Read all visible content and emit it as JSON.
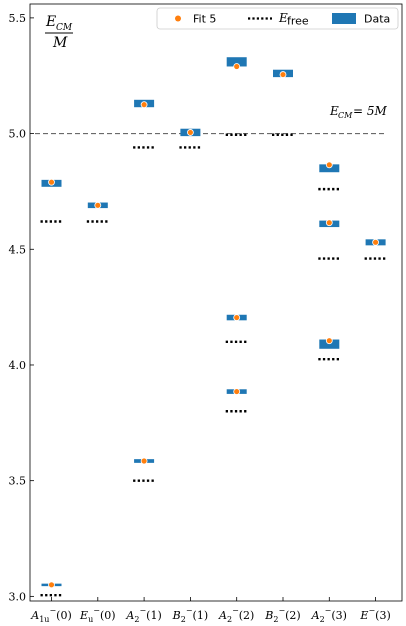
{
  "chart_data": {
    "type": "scatter",
    "title": "",
    "xlabel": "",
    "ylabel": "E_CM / M",
    "ylim": [
      2.98,
      5.56
    ],
    "yticks": [
      "3.0",
      "3.5",
      "4.0",
      "4.5",
      "5.0",
      "5.5"
    ],
    "ytick_values": [
      3.0,
      3.5,
      4.0,
      4.5,
      5.0,
      5.5
    ],
    "categories": [
      "A1u(0)",
      "Eu(0)",
      "A2(1)",
      "B2(1)",
      "A2(2)",
      "B2(2)",
      "A2(3)",
      "E(3)"
    ],
    "legend": {
      "placement": "top-right",
      "entries": [
        "Fit 5",
        "E_free",
        "Data"
      ]
    },
    "colors": {
      "data": "#1f77b4",
      "fit": "#ff7f0e",
      "free": "#000000",
      "threshold": "#555555"
    },
    "threshold": {
      "value": 5.0,
      "label": "E_CM = 5M"
    },
    "series": [
      {
        "name": "Data",
        "points": [
          {
            "cat": 0,
            "center": 4.785,
            "half": 0.015
          },
          {
            "cat": 1,
            "center": 4.69,
            "half": 0.012
          },
          {
            "cat": 2,
            "center": 5.13,
            "half": 0.016
          },
          {
            "cat": 3,
            "center": 5.005,
            "half": 0.016
          },
          {
            "cat": 4,
            "center": 5.31,
            "half": 0.02
          },
          {
            "cat": 4,
            "center": 4.205,
            "half": 0.012
          },
          {
            "cat": 4,
            "center": 3.885,
            "half": 0.01
          },
          {
            "cat": 5,
            "center": 5.26,
            "half": 0.016
          },
          {
            "cat": 6,
            "center": 4.85,
            "half": 0.017
          },
          {
            "cat": 6,
            "center": 4.61,
            "half": 0.014
          },
          {
            "cat": 6,
            "center": 4.09,
            "half": 0.02
          },
          {
            "cat": 7,
            "center": 4.53,
            "half": 0.013
          },
          {
            "cat": 0,
            "center": 3.05,
            "half": 0.005
          },
          {
            "cat": 2,
            "center": 3.585,
            "half": 0.008
          }
        ]
      },
      {
        "name": "Fit 5",
        "points": [
          {
            "cat": 0,
            "y": 4.79
          },
          {
            "cat": 1,
            "y": 4.69
          },
          {
            "cat": 2,
            "y": 5.125
          },
          {
            "cat": 3,
            "y": 5.005
          },
          {
            "cat": 4,
            "y": 5.29
          },
          {
            "cat": 4,
            "y": 4.205
          },
          {
            "cat": 4,
            "y": 3.885
          },
          {
            "cat": 5,
            "y": 5.255
          },
          {
            "cat": 6,
            "y": 4.865
          },
          {
            "cat": 6,
            "y": 4.615
          },
          {
            "cat": 6,
            "y": 4.105
          },
          {
            "cat": 7,
            "y": 4.53
          },
          {
            "cat": 0,
            "y": 3.05
          },
          {
            "cat": 2,
            "y": 3.585
          }
        ]
      },
      {
        "name": "E_free",
        "points": [
          {
            "cat": 0,
            "y": 4.62
          },
          {
            "cat": 0,
            "y": 3.005
          },
          {
            "cat": 1,
            "y": 4.62
          },
          {
            "cat": 2,
            "y": 4.94
          },
          {
            "cat": 2,
            "y": 3.5
          },
          {
            "cat": 3,
            "y": 4.94
          },
          {
            "cat": 4,
            "y": 4.995
          },
          {
            "cat": 4,
            "y": 4.1
          },
          {
            "cat": 4,
            "y": 3.8
          },
          {
            "cat": 5,
            "y": 4.995
          },
          {
            "cat": 6,
            "y": 4.76
          },
          {
            "cat": 6,
            "y": 4.46
          },
          {
            "cat": 6,
            "y": 4.025
          },
          {
            "cat": 7,
            "y": 4.46
          }
        ]
      }
    ]
  }
}
